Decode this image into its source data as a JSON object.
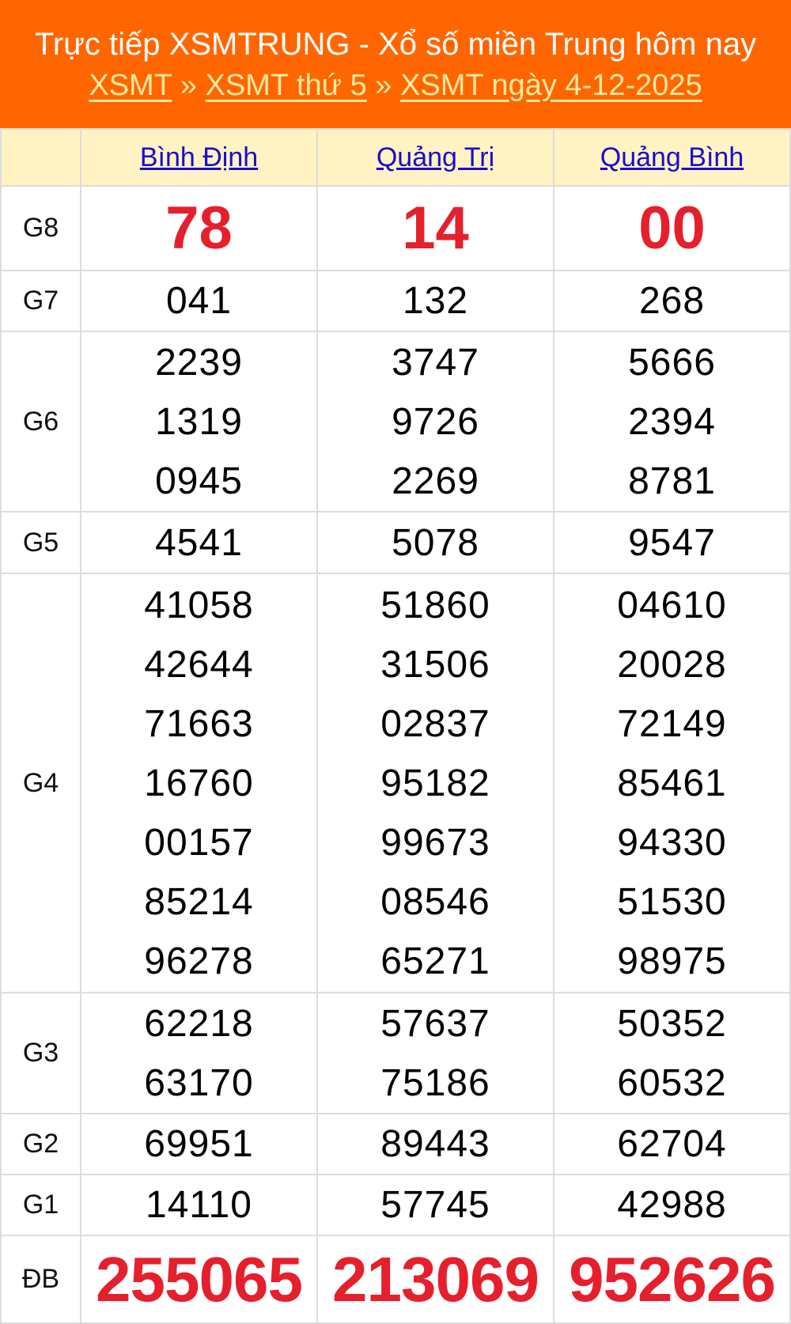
{
  "header": {
    "title": "Trực tiếp XSMTRUNG - Xổ số miền Trung hôm nay",
    "breadcrumb": [
      "XSMT",
      "XSMT thứ 5",
      "XSMT ngày 4-12-2025"
    ],
    "separator": "»"
  },
  "provinces": [
    "Bình Định",
    "Quảng Trị",
    "Quảng Bình"
  ],
  "prizes": [
    {
      "label": "G8",
      "values": [
        [
          "78"
        ],
        [
          "14"
        ],
        [
          "00"
        ]
      ]
    },
    {
      "label": "G7",
      "values": [
        [
          "041"
        ],
        [
          "132"
        ],
        [
          "268"
        ]
      ]
    },
    {
      "label": "G6",
      "values": [
        [
          "2239",
          "1319",
          "0945"
        ],
        [
          "3747",
          "9726",
          "2269"
        ],
        [
          "5666",
          "2394",
          "8781"
        ]
      ]
    },
    {
      "label": "G5",
      "values": [
        [
          "4541"
        ],
        [
          "5078"
        ],
        [
          "9547"
        ]
      ]
    },
    {
      "label": "G4",
      "values": [
        [
          "41058",
          "42644",
          "71663",
          "16760",
          "00157",
          "85214",
          "96278"
        ],
        [
          "51860",
          "31506",
          "02837",
          "95182",
          "99673",
          "08546",
          "65271"
        ],
        [
          "04610",
          "20028",
          "72149",
          "85461",
          "94330",
          "51530",
          "98975"
        ]
      ]
    },
    {
      "label": "G3",
      "values": [
        [
          "62218",
          "63170"
        ],
        [
          "57637",
          "75186"
        ],
        [
          "50352",
          "60532"
        ]
      ]
    },
    {
      "label": "G2",
      "values": [
        [
          "69951"
        ],
        [
          "89443"
        ],
        [
          "62704"
        ]
      ]
    },
    {
      "label": "G1",
      "values": [
        [
          "14110"
        ],
        [
          "57745"
        ],
        [
          "42988"
        ]
      ]
    },
    {
      "label": "ĐB",
      "values": [
        [
          "255065"
        ],
        [
          "213069"
        ],
        [
          "952626"
        ]
      ]
    }
  ],
  "colors": {
    "header_bg": "#ff6600",
    "highlight": "#e5202c",
    "province_row_bg": "#fff3c4",
    "link": "#1a0dcc"
  }
}
